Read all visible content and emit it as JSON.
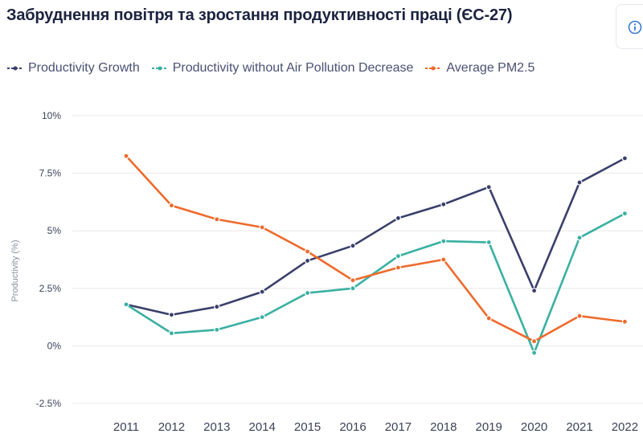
{
  "header": {
    "title": "Забруднення повітря та зростання продуктивності праці (ЄС-27)",
    "info_icon": "info-circle-icon"
  },
  "colors": {
    "productivity_growth": "#3a3f6b",
    "productivity_without": "#3ab0a2",
    "pm25": "#ee6a2c",
    "grid": "#e8e8e8"
  },
  "chart_data": {
    "type": "line",
    "title": "Забруднення повітря та зростання продуктивності праці (ЄС-27)",
    "xlabel": "",
    "ylabel": "Productivity (%)",
    "ylim": [
      -2.5,
      10
    ],
    "yticks": [
      -2.5,
      0,
      2.5,
      5,
      7.5,
      10
    ],
    "ytick_labels": [
      "-2.5%",
      "0%",
      "2.5%",
      "5%",
      "7.5%",
      "10%"
    ],
    "grid": true,
    "legend_position": "top-left",
    "x": [
      "2011",
      "2012",
      "2013",
      "2014",
      "2015",
      "2016",
      "2017",
      "2018",
      "2019",
      "2020",
      "2021",
      "2022"
    ],
    "series": [
      {
        "name": "Productivity Growth",
        "color": "#3a3f6b",
        "values": [
          1.8,
          1.35,
          1.7,
          2.35,
          3.7,
          4.35,
          5.55,
          6.15,
          6.9,
          2.4,
          7.1,
          8.15
        ]
      },
      {
        "name": "Productivity without Air Pollution Decrease",
        "color": "#3ab0a2",
        "values": [
          1.8,
          0.55,
          0.7,
          1.25,
          2.3,
          2.5,
          3.9,
          4.55,
          4.5,
          -0.3,
          4.7,
          5.75
        ]
      },
      {
        "name": "Average PM2.5",
        "color": "#ee6a2c",
        "values": [
          8.25,
          6.1,
          5.5,
          5.15,
          4.1,
          2.85,
          3.4,
          3.75,
          1.2,
          0.2,
          1.3,
          1.05
        ]
      }
    ]
  }
}
